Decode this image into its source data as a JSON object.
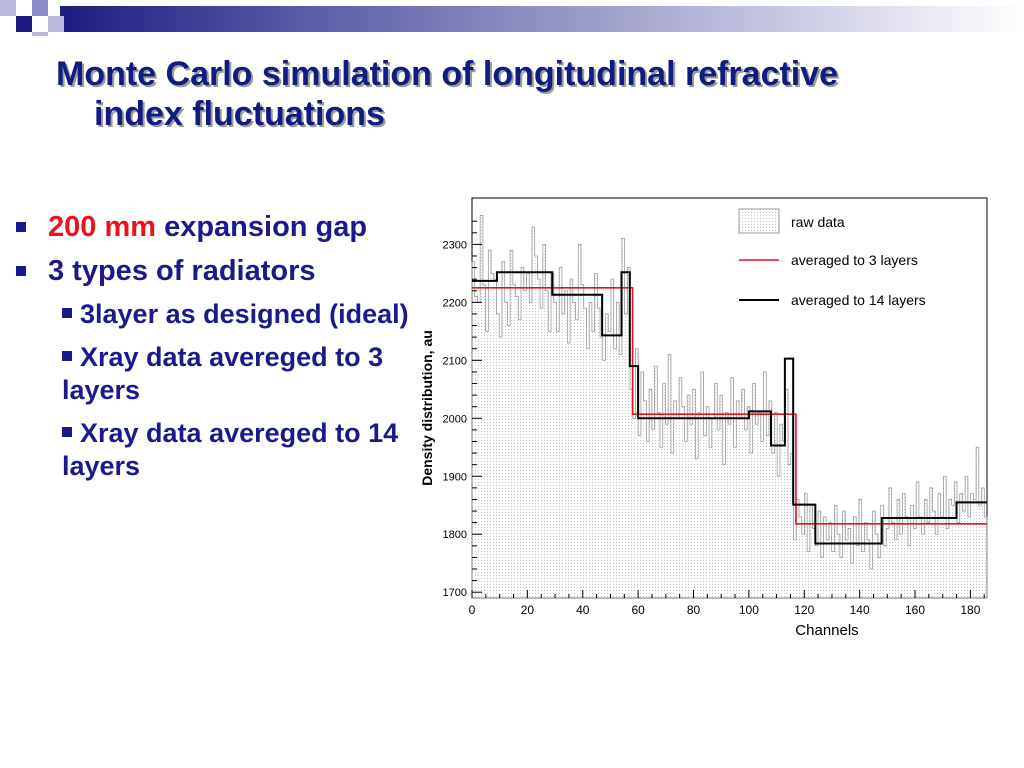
{
  "slide": {
    "title_line1": "Monte Carlo simulation of longitudinal refractive",
    "title_line2": "index fluctuations",
    "bullets": [
      {
        "highlight": "200 mm",
        "rest": " expansion gap"
      },
      {
        "text": "3 types of radiators"
      }
    ],
    "sub_bullets": [
      "3layer as designed (ideal)",
      "Xray data avereged to 3 layers",
      "Xray data avereged to 14 layers"
    ],
    "colors": {
      "title": "#111c80",
      "bullet_text": "#1a1a8c",
      "highlight": "#e8141b",
      "header_gradient_end": "#ffffff",
      "header_gradient_start": "#1c1c80"
    }
  },
  "chart_data": {
    "type": "line",
    "xlabel": "Channels",
    "ylabel": "Density distribution, au",
    "xlim": [
      0,
      186
    ],
    "ylim": [
      1690,
      2380
    ],
    "x_ticks": [
      0,
      20,
      40,
      60,
      80,
      100,
      120,
      140,
      160,
      180
    ],
    "y_ticks": [
      1700,
      1800,
      1900,
      2000,
      2100,
      2200,
      2300
    ],
    "legend_position": "top-right",
    "series": [
      {
        "name": "raw data",
        "color": "#9a9a9a",
        "style": "hatched-histogram",
        "values": [
          2270,
          2210,
          2200,
          2350,
          2230,
          2150,
          2290,
          2250,
          2240,
          2180,
          2140,
          2270,
          2200,
          2160,
          2290,
          2230,
          2210,
          2170,
          2260,
          2220,
          2250,
          2200,
          2330,
          2280,
          2240,
          2190,
          2300,
          2220,
          2150,
          2250,
          2200,
          2150,
          2260,
          2180,
          2220,
          2130,
          2240,
          2200,
          2170,
          2300,
          2230,
          2190,
          2120,
          2200,
          2150,
          2250,
          2190,
          2140,
          2100,
          2180,
          2150,
          2240,
          2120,
          2200,
          2110,
          2310,
          2180,
          2260,
          2050,
          2000,
          2120,
          1970,
          2080,
          2030,
          1960,
          2050,
          1980,
          2090,
          2010,
          1950,
          2060,
          1990,
          2110,
          1940,
          2030,
          2000,
          2070,
          2020,
          1960,
          2040,
          1990,
          2050,
          1930,
          2010,
          2080,
          1970,
          2020,
          1950,
          2000,
          2060,
          1980,
          2040,
          1920,
          2010,
          1990,
          2070,
          1950,
          2030,
          2000,
          2050,
          1980,
          2020,
          1940,
          2060,
          1990,
          2010,
          1960,
          2080,
          1970,
          2030,
          1940,
          2010,
          1900,
          1990,
          1960,
          2050,
          1920,
          1940,
          1790,
          1860,
          1830,
          1800,
          1870,
          1770,
          1850,
          1810,
          1780,
          1840,
          1760,
          1830,
          1790,
          1820,
          1770,
          1850,
          1800,
          1760,
          1840,
          1790,
          1810,
          1750,
          1830,
          1780,
          1860,
          1770,
          1820,
          1790,
          1740,
          1840,
          1800,
          1760,
          1850,
          1780,
          1810,
          1880,
          1820,
          1790,
          1860,
          1800,
          1870,
          1830,
          1780,
          1850,
          1810,
          1890,
          1830,
          1800,
          1860,
          1820,
          1880,
          1840,
          1800,
          1870,
          1830,
          1900,
          1810,
          1860,
          1850,
          1890,
          1820,
          1870,
          1840,
          1900,
          1830,
          1870,
          1860,
          1950,
          1850,
          1880,
          1830
        ]
      },
      {
        "name": "averaged to 3 layers",
        "color": "#e8141b",
        "steps": [
          [
            0,
            58,
            2225
          ],
          [
            58,
            117,
            2007
          ],
          [
            117,
            186,
            1818
          ]
        ]
      },
      {
        "name": "averaged to 14 layers",
        "color": "#000000",
        "steps": [
          [
            0,
            9,
            2237
          ],
          [
            9,
            29,
            2252
          ],
          [
            29,
            47,
            2213
          ],
          [
            47,
            54,
            2143
          ],
          [
            54,
            57,
            2252
          ],
          [
            57,
            60,
            2090
          ],
          [
            60,
            100,
            2000
          ],
          [
            100,
            108,
            2012
          ],
          [
            108,
            113,
            1953
          ],
          [
            113,
            116,
            2103
          ],
          [
            116,
            124,
            1851
          ],
          [
            124,
            148,
            1784
          ],
          [
            148,
            175,
            1828
          ],
          [
            175,
            186,
            1855
          ]
        ]
      }
    ]
  }
}
